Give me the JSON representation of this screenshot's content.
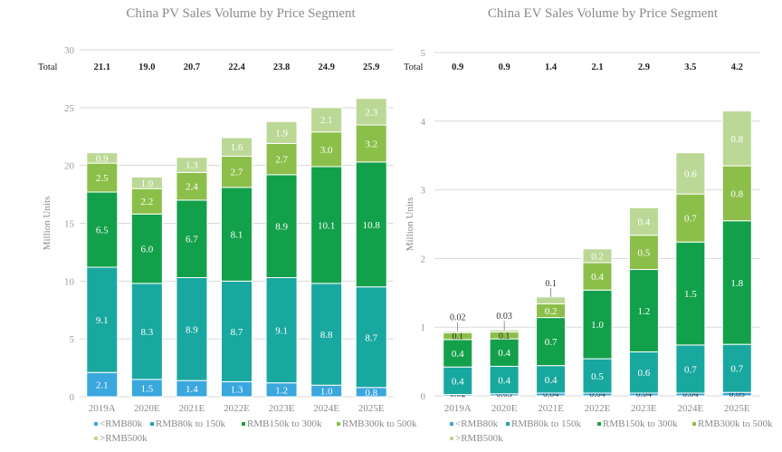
{
  "chart_data": [
    {
      "type": "bar",
      "stacked": true,
      "title": "China PV Sales Volume by Price Segment",
      "xlabel": "",
      "ylabel": "Million Units",
      "ylim": [
        0,
        30
      ],
      "yticks": [
        0,
        5,
        10,
        15,
        20,
        25,
        30
      ],
      "grid": true,
      "legend_position": "bottom",
      "categories": [
        "2019A",
        "2020E",
        "2021E",
        "2022E",
        "2023E",
        "2024E",
        "2025E"
      ],
      "totals_label": "Total",
      "totals": [
        "21.1",
        "19.0",
        "20.7",
        "22.4",
        "23.8",
        "24.9",
        "25.9"
      ],
      "series": [
        {
          "name": "<RMB80k",
          "color": "#3aa7dd",
          "values": [
            2.1,
            1.5,
            1.4,
            1.3,
            1.2,
            1.0,
            0.8
          ],
          "labels": [
            "2.1",
            "1.5",
            "1.4",
            "1.3",
            "1.2",
            "1.0",
            "0.8"
          ]
        },
        {
          "name": "RMB80k to 150k",
          "color": "#19a89f",
          "values": [
            9.1,
            8.3,
            8.9,
            8.7,
            9.1,
            8.8,
            8.7
          ],
          "labels": [
            "9.1",
            "8.3",
            "8.9",
            "8.7",
            "9.1",
            "8.8",
            "8.7"
          ]
        },
        {
          "name": "RMB150k to 300k",
          "color": "#13a04a",
          "values": [
            6.5,
            6.0,
            6.7,
            8.1,
            8.9,
            10.1,
            10.8
          ],
          "labels": [
            "6.5",
            "6.0",
            "6.7",
            "8.1",
            "8.9",
            "10.1",
            "10.8"
          ]
        },
        {
          "name": "RMB300k to 500k",
          "color": "#8cbf4a",
          "values": [
            2.5,
            2.2,
            2.4,
            2.7,
            2.7,
            3.0,
            3.2
          ],
          "labels": [
            "2.5",
            "2.2",
            "2.4",
            "2.7",
            "2.7",
            "3.0",
            "3.2"
          ]
        },
        {
          "name": ">RMB500k",
          "color": "#bcd896",
          "values": [
            0.9,
            1.0,
            1.3,
            1.6,
            1.9,
            2.1,
            2.3
          ],
          "labels": [
            "0.9",
            "1.0",
            "1.3",
            "1.6",
            "1.9",
            "2.1",
            "2.3"
          ]
        }
      ]
    },
    {
      "type": "bar",
      "stacked": true,
      "title": "China EV Sales Volume by Price Segment",
      "xlabel": "",
      "ylabel": "Million Units",
      "ylim": [
        0,
        5
      ],
      "yticks": [
        0,
        1,
        2,
        3,
        4,
        5
      ],
      "grid": true,
      "legend_position": "bottom",
      "categories": [
        "2019A",
        "2020E",
        "2021E",
        "2022E",
        "2023E",
        "2024E",
        "2025E"
      ],
      "totals_label": "Total",
      "totals": [
        "0.9",
        "0.9",
        "1.4",
        "2.1",
        "2.9",
        "3.5",
        "4.2"
      ],
      "series": [
        {
          "name": "<RMB80k",
          "color": "#3aa7dd",
          "values": [
            0.02,
            0.03,
            0.04,
            0.04,
            0.04,
            0.04,
            0.05
          ],
          "labels": [
            "0.02",
            "0.03",
            "0.04",
            "0.04",
            "0.04",
            "0.04",
            "0.05"
          ]
        },
        {
          "name": "RMB80k to 150k",
          "color": "#19a89f",
          "values": [
            0.4,
            0.4,
            0.4,
            0.5,
            0.6,
            0.7,
            0.7
          ],
          "labels": [
            "0.4",
            "0.4",
            "0.4",
            "0.5",
            "0.6",
            "0.7",
            "0.7"
          ]
        },
        {
          "name": "RMB150k to 300k",
          "color": "#13a04a",
          "values": [
            0.4,
            0.4,
            0.7,
            1.0,
            1.2,
            1.5,
            1.8
          ],
          "labels": [
            "0.4",
            "0.4",
            "0.7",
            "1.0",
            "1.2",
            "1.5",
            "1.8"
          ]
        },
        {
          "name": "RMB300k to 500k",
          "color": "#8cbf4a",
          "values": [
            0.1,
            0.1,
            0.2,
            0.4,
            0.5,
            0.7,
            0.8
          ],
          "labels": [
            "0.1",
            "0.1",
            "0.2",
            "0.4",
            "0.5",
            "0.7",
            "0.8"
          ]
        },
        {
          "name": ">RMB500k",
          "color": "#bcd896",
          "values": [
            0.02,
            0.03,
            0.1,
            0.2,
            0.4,
            0.6,
            0.8
          ],
          "labels": [
            "0.02",
            "0.03",
            "0.1",
            "0.2",
            "0.4",
            "0.6",
            "0.8"
          ]
        }
      ]
    }
  ]
}
